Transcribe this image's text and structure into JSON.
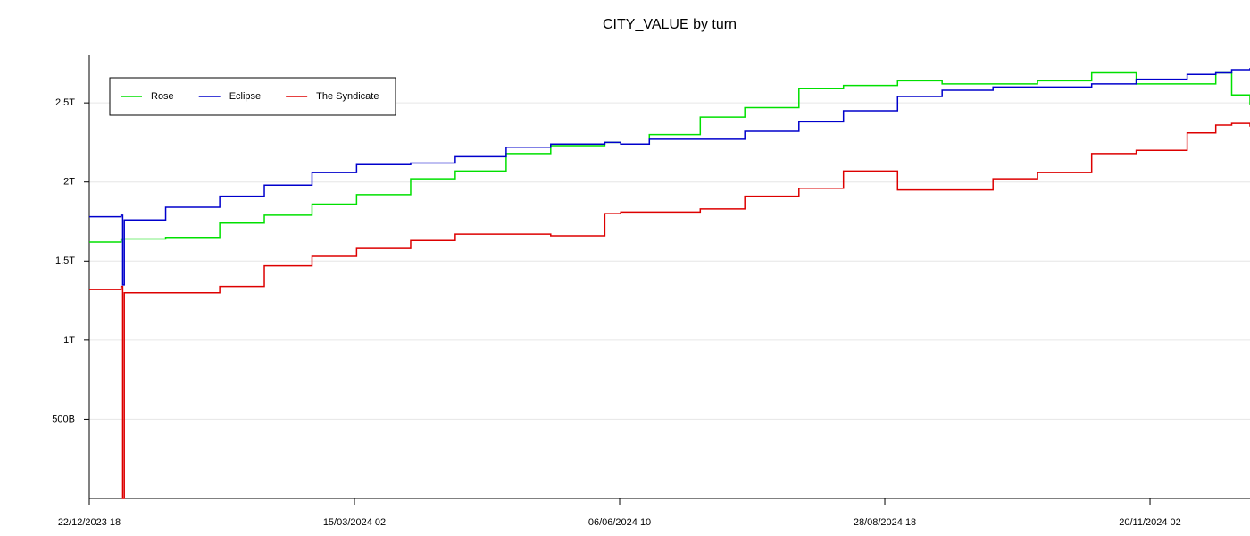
{
  "chart_data": {
    "type": "line",
    "title": "CITY_VALUE by turn",
    "x": [
      "2023-12-22 18",
      "2024-01-01 18",
      "2024-01-02 06",
      "2024-01-02 18",
      "2024-01-15 18",
      "2024-02-01 18",
      "2024-02-15 18",
      "2024-03-01 18",
      "2024-03-15 18",
      "2024-04-01 18",
      "2024-04-15 18",
      "2024-05-01 18",
      "2024-05-15 18",
      "2024-06-01 18",
      "2024-06-06 18",
      "2024-06-15 18",
      "2024-07-01 18",
      "2024-07-15 18",
      "2024-08-01 18",
      "2024-08-15 18",
      "2024-09-01 18",
      "2024-09-15 18",
      "2024-10-01 18",
      "2024-10-15 18",
      "2024-11-01 18",
      "2024-11-15 18",
      "2024-12-01 18",
      "2024-12-10 18",
      "2024-12-15 18",
      "2024-12-21 12"
    ],
    "series": [
      {
        "name": "Rose",
        "color": "#00e000",
        "values": [
          1620000000000,
          1640000000000,
          1640000000000,
          1640000000000,
          1650000000000,
          1740000000000,
          1790000000000,
          1860000000000,
          1920000000000,
          2020000000000,
          2070000000000,
          2180000000000,
          2230000000000,
          2250000000000,
          2240000000000,
          2300000000000,
          2410000000000,
          2470000000000,
          2590000000000,
          2610000000000,
          2640000000000,
          2620000000000,
          2620000000000,
          2640000000000,
          2690000000000,
          2620000000000,
          2620000000000,
          2690000000000,
          2550000000000,
          2490000000000
        ]
      },
      {
        "name": "Eclipse",
        "color": "#0000cc",
        "values": [
          1780000000000,
          1790000000000,
          1350000000000,
          1760000000000,
          1840000000000,
          1910000000000,
          1980000000000,
          2060000000000,
          2110000000000,
          2120000000000,
          2160000000000,
          2220000000000,
          2240000000000,
          2250000000000,
          2240000000000,
          2270000000000,
          2270000000000,
          2320000000000,
          2380000000000,
          2450000000000,
          2540000000000,
          2580000000000,
          2600000000000,
          2600000000000,
          2620000000000,
          2650000000000,
          2680000000000,
          2690000000000,
          2710000000000,
          2720000000000
        ]
      },
      {
        "name": "The Syndicate",
        "color": "#dd0000",
        "values": [
          1320000000000,
          1340000000000,
          0,
          1300000000000,
          1300000000000,
          1340000000000,
          1470000000000,
          1530000000000,
          1580000000000,
          1630000000000,
          1670000000000,
          1670000000000,
          1660000000000,
          1800000000000,
          1810000000000,
          1810000000000,
          1830000000000,
          1910000000000,
          1960000000000,
          2070000000000,
          1950000000000,
          1950000000000,
          2020000000000,
          2060000000000,
          2180000000000,
          2200000000000,
          2310000000000,
          2360000000000,
          2370000000000,
          2350000000000
        ]
      }
    ],
    "xlim": [
      "2023-12-22 18",
      "2024-12-21 12"
    ],
    "xticks": [
      {
        "value": "2023-12-22 18",
        "label": "22/12/2023 18"
      },
      {
        "value": "2024-03-15 02",
        "label": "15/03/2024 02"
      },
      {
        "value": "2024-06-06 10",
        "label": "06/06/2024 10"
      },
      {
        "value": "2024-08-28 18",
        "label": "28/08/2024 18"
      },
      {
        "value": "2024-11-20 02",
        "label": "20/11/2024 02"
      }
    ],
    "ylim": [
      0,
      2800000000000
    ],
    "yticks": [
      {
        "value": 500000000000,
        "label": "500B"
      },
      {
        "value": 1000000000000,
        "label": "1T"
      },
      {
        "value": 1500000000000,
        "label": "1.5T"
      },
      {
        "value": 2000000000000,
        "label": "2T"
      },
      {
        "value": 2500000000000,
        "label": "2.5T"
      }
    ],
    "grid": true,
    "legend": "upper left"
  }
}
